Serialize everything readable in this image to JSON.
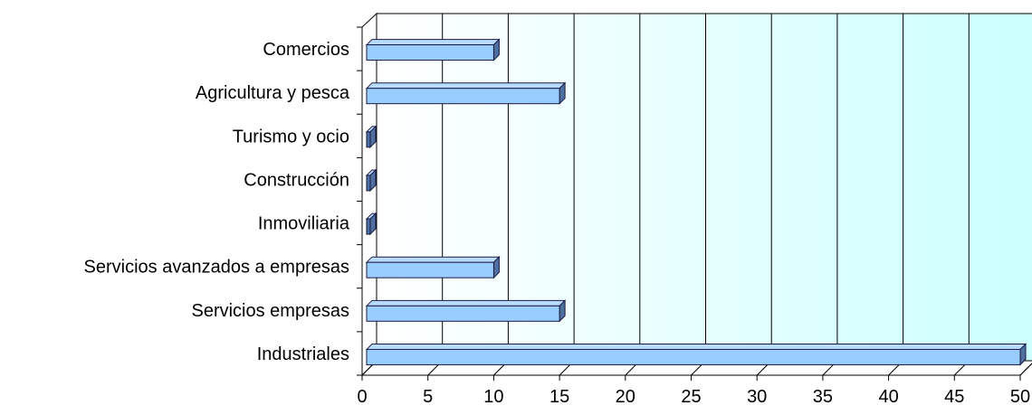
{
  "chart_data": {
    "type": "bar",
    "orientation": "horizontal",
    "style": "3d",
    "categories": [
      "Comercios",
      "Agricultura y pesca",
      "Turismo y ocio",
      "Construcción",
      "Inmoviliaria",
      "Servicios avanzados a empresas",
      "Servicios empresas",
      "Industriales"
    ],
    "values": [
      10,
      15,
      0,
      0,
      0,
      10,
      15,
      50
    ],
    "xlim": [
      0,
      50
    ],
    "x_ticks": [
      0,
      5,
      10,
      15,
      20,
      25,
      30,
      35,
      40,
      45,
      50
    ],
    "x_tick_labels": [
      "0",
      "5",
      "10",
      "15",
      "20",
      "25",
      "30",
      "35",
      "40",
      "45",
      "50"
    ],
    "title": "",
    "xlabel": "",
    "ylabel": "",
    "grid": "vertical",
    "legend": "none",
    "colors": {
      "bar_face": "#99ccff",
      "bar_top": "#b8dcff",
      "bar_side": "#4f6fa0",
      "bar_stroke": "#1a1a40",
      "plot_gradient_left": "#ffffff",
      "plot_gradient_right": "#ccffff",
      "floor": "#ffffff",
      "grid": "#000000"
    }
  }
}
